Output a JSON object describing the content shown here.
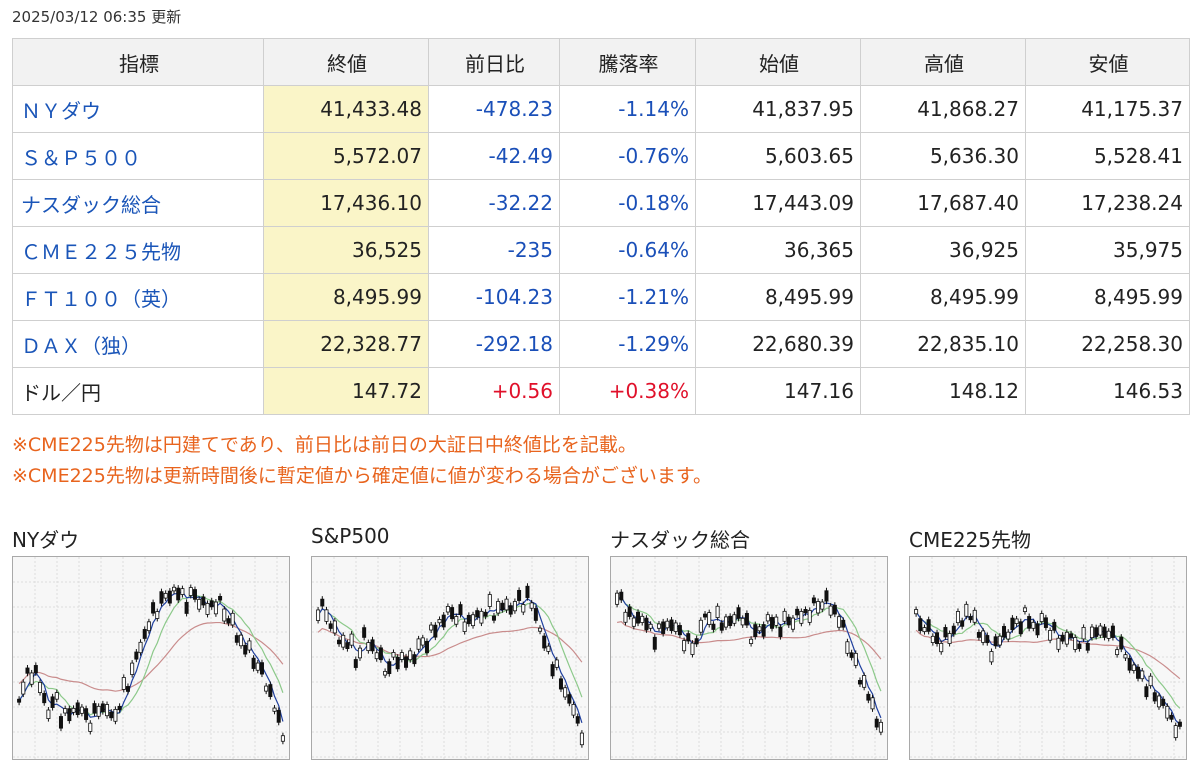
{
  "updated": "2025/03/12 06:35 更新",
  "headers": [
    "指標",
    "終値",
    "前日比",
    "騰落率",
    "始値",
    "高値",
    "安値"
  ],
  "rows": [
    {
      "name": "ＮＹダウ",
      "link": true,
      "close": "41,433.48",
      "change": "-478.23",
      "rate": "-1.14%",
      "open": "41,837.95",
      "high": "41,868.27",
      "low": "41,175.37",
      "direction": "down"
    },
    {
      "name": "Ｓ＆Ｐ５００",
      "link": true,
      "close": "5,572.07",
      "change": "-42.49",
      "rate": "-0.76%",
      "open": "5,603.65",
      "high": "5,636.30",
      "low": "5,528.41",
      "direction": "down"
    },
    {
      "name": "ナスダック総合",
      "link": true,
      "close": "17,436.10",
      "change": "-32.22",
      "rate": "-0.18%",
      "open": "17,443.09",
      "high": "17,687.40",
      "low": "17,238.24",
      "direction": "down"
    },
    {
      "name": "ＣＭＥ２２５先物",
      "link": true,
      "close": "36,525",
      "change": "-235",
      "rate": "-0.64%",
      "open": "36,365",
      "high": "36,925",
      "low": "35,975",
      "direction": "down"
    },
    {
      "name": "ＦＴ１００（英）",
      "link": true,
      "close": "8,495.99",
      "change": "-104.23",
      "rate": "-1.21%",
      "open": "8,495.99",
      "high": "8,495.99",
      "low": "8,495.99",
      "direction": "down"
    },
    {
      "name": "ＤＡＸ（独）",
      "link": true,
      "close": "22,328.77",
      "change": "-292.18",
      "rate": "-1.29%",
      "open": "22,680.39",
      "high": "22,835.10",
      "low": "22,258.30",
      "direction": "down"
    },
    {
      "name": "ドル／円",
      "link": false,
      "close": "147.72",
      "change": "+0.56",
      "rate": "+0.38%",
      "open": "147.16",
      "high": "148.12",
      "low": "146.53",
      "direction": "up"
    }
  ],
  "notes": [
    "※CME225先物は円建てであり、前日比は前日の大証日中終値比を記載。",
    "※CME225先物は更新時間後に暫定値から確定値に値が変わる場合がございます。"
  ],
  "charts": [
    {
      "title": "NYダウ"
    },
    {
      "title": "S&P500"
    },
    {
      "title": "ナスダック総合"
    },
    {
      "title": "CME225先物"
    }
  ],
  "colors": {
    "link": "#1a55b8",
    "negative": "#1a4fb8",
    "positive": "#e0102a",
    "note": "#e8641e",
    "close_highlight": "#faf5c8",
    "ma_short": "#1f3f9e",
    "ma_mid": "#8cc98a",
    "ma_long": "#c98c8c"
  }
}
